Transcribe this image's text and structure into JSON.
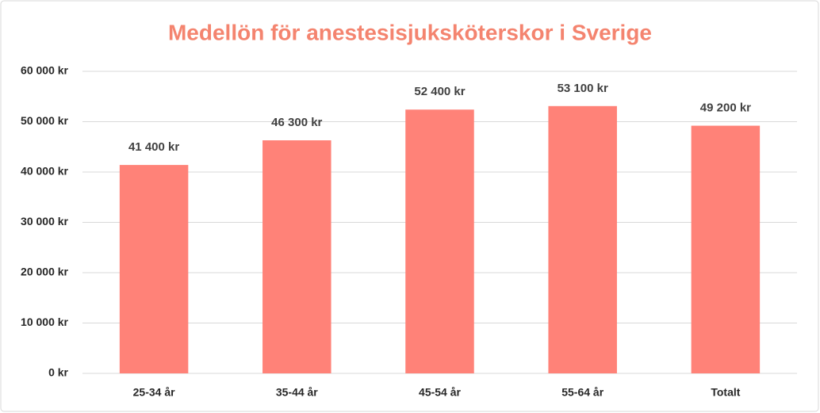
{
  "chart_data": {
    "type": "bar",
    "title": "Medellön för anestesisjuksköterskor i Sverige",
    "categories": [
      "25-34 år",
      "35-44 år",
      "45-54 år",
      "55-64 år",
      "Totalt"
    ],
    "values": [
      41400,
      46300,
      52400,
      53100,
      49200
    ],
    "value_labels": [
      "41 400 kr",
      "46 300 kr",
      "52 400 kr",
      "53 100 kr",
      "49 200 kr"
    ],
    "color": "#ff8278",
    "ylim": [
      0,
      60000
    ],
    "yticks": [
      {
        "value": 0,
        "label": "0 kr"
      },
      {
        "value": 10000,
        "label": "10 000 kr"
      },
      {
        "value": 20000,
        "label": "20 000 kr"
      },
      {
        "value": 30000,
        "label": "30 000 kr"
      },
      {
        "value": 40000,
        "label": "40 000 kr"
      },
      {
        "value": 50000,
        "label": "50 000 kr"
      },
      {
        "value": 60000,
        "label": "60 000 kr"
      }
    ],
    "grid": true
  }
}
